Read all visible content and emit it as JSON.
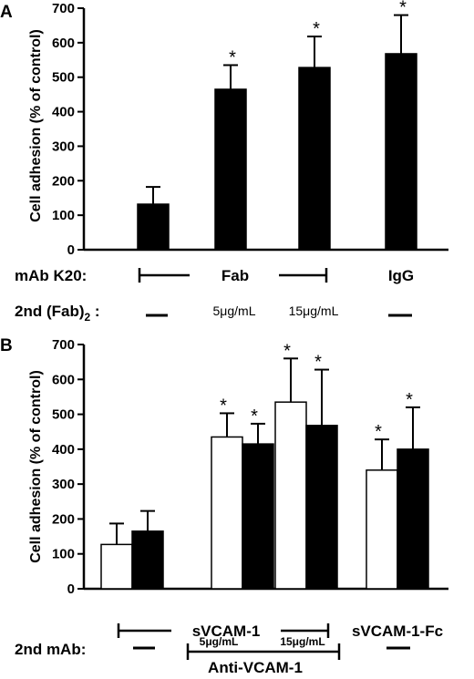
{
  "chart_data": [
    {
      "panel": "A",
      "type": "bar",
      "ylabel": "Cell adhesion (% of control)",
      "ylim": [
        0,
        700
      ],
      "yticks": [
        0,
        100,
        200,
        300,
        400,
        500,
        600,
        700
      ],
      "series": [
        {
          "fill": "#000000",
          "values": [
            132,
            465,
            528,
            568
          ],
          "errors": [
            50,
            70,
            90,
            112
          ],
          "significant": [
            false,
            true,
            true,
            true
          ]
        }
      ],
      "rows": [
        {
          "label": "mAb K20:",
          "items": [
            {
              "text": "Fab"
            },
            {
              "text": "IgG"
            }
          ]
        },
        {
          "label": "2nd (Fab)",
          "label_sub": "2",
          "label_tail": " :",
          "items": [
            {
              "text": "5μg/mL"
            },
            {
              "text": "15μg/mL"
            }
          ]
        }
      ]
    },
    {
      "panel": "B",
      "type": "bar",
      "ylabel": "Cell adhesion (% of control)",
      "ylim": [
        0,
        700
      ],
      "yticks": [
        0,
        100,
        200,
        300,
        400,
        500,
        600,
        700
      ],
      "series": [
        {
          "fill": "#ffffff",
          "values": [
            127,
            435,
            535,
            340
          ],
          "errors": [
            60,
            68,
            125,
            88
          ],
          "significant": [
            false,
            true,
            true,
            true
          ]
        },
        {
          "fill": "#000000",
          "values": [
            165,
            415,
            468,
            400
          ],
          "errors": [
            58,
            58,
            160,
            120
          ],
          "significant": [
            false,
            true,
            true,
            true
          ]
        }
      ],
      "rows": [
        {
          "items": [
            {
              "text": "sVCAM-1"
            },
            {
              "text": "sVCAM-1-Fc"
            }
          ]
        },
        {
          "label": "2nd mAb:",
          "items": [
            {
              "text": "5μg/mL"
            },
            {
              "text": "15μg/mL"
            },
            {
              "text": "Anti-VCAM-1"
            }
          ]
        }
      ]
    }
  ]
}
